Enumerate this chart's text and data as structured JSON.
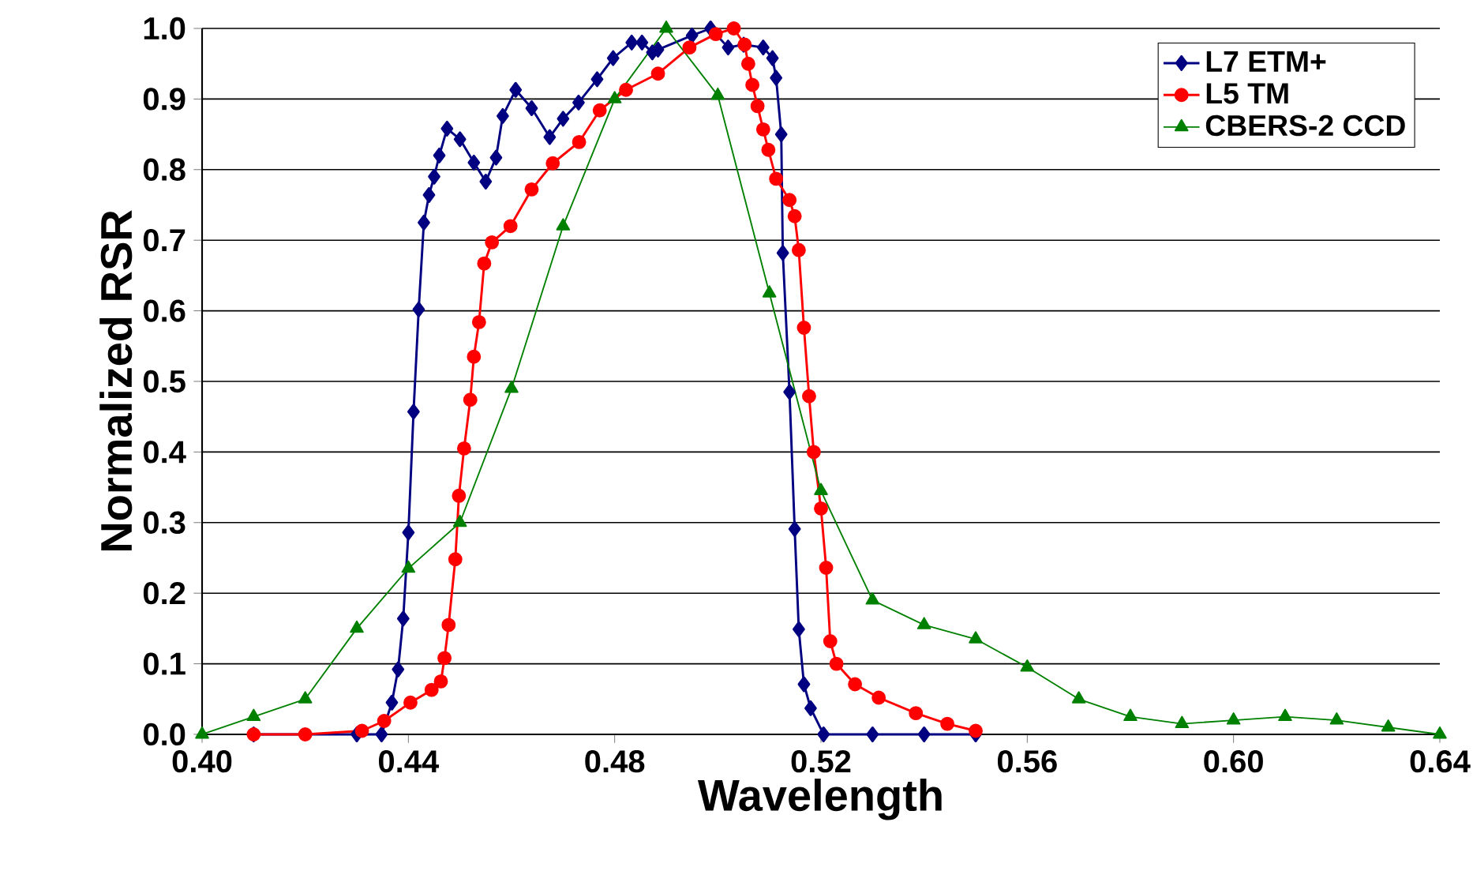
{
  "chart_data": {
    "type": "line",
    "xlabel": "Wavelength",
    "ylabel": "Normalized RSR",
    "xlim": [
      0.4,
      0.64
    ],
    "ylim": [
      0,
      1.0
    ],
    "xticks": [
      {
        "value": 0.4,
        "label": "0.40"
      },
      {
        "value": 0.44,
        "label": "0.44"
      },
      {
        "value": 0.48,
        "label": "0.48"
      },
      {
        "value": 0.52,
        "label": "0.52"
      },
      {
        "value": 0.56,
        "label": "0.56"
      },
      {
        "value": 0.6,
        "label": "0.60"
      },
      {
        "value": 0.64,
        "label": "0.64"
      }
    ],
    "yticks": [
      {
        "value": 0,
        "label": "0.0"
      },
      {
        "value": 0.1,
        "label": "0.1"
      },
      {
        "value": 0.2,
        "label": "0.2"
      },
      {
        "value": 0.3,
        "label": "0.3"
      },
      {
        "value": 0.4,
        "label": "0.4"
      },
      {
        "value": 0.5,
        "label": "0.5"
      },
      {
        "value": 0.6,
        "label": "0.6"
      },
      {
        "value": 0.7,
        "label": "0.7"
      },
      {
        "value": 0.8,
        "label": "0.8"
      },
      {
        "value": 0.9,
        "label": "0.9"
      },
      {
        "value": 1.0,
        "label": "1.0"
      }
    ],
    "grid": "y",
    "legend": "top right",
    "series": [
      {
        "name": "L7 ETM+",
        "color": "#000080",
        "marker": "diamond",
        "x": [
          0.41,
          0.43,
          0.4348,
          0.4368,
          0.438,
          0.439,
          0.44,
          0.441,
          0.442,
          0.443,
          0.444,
          0.445,
          0.446,
          0.4475,
          0.45,
          0.4527,
          0.455,
          0.457,
          0.4583,
          0.4608,
          0.4639,
          0.4674,
          0.47,
          0.473,
          0.4766,
          0.4797,
          0.4833,
          0.4853,
          0.4873,
          0.4884,
          0.495,
          0.4986,
          0.502,
          0.505,
          0.5088,
          0.5106,
          0.5113,
          0.5123,
          0.5126,
          0.5139,
          0.5149,
          0.5157,
          0.5167,
          0.518,
          0.5205,
          0.53,
          0.54,
          0.55
        ],
        "values": [
          0,
          0,
          0,
          0.045,
          0.092,
          0.164,
          0.286,
          0.457,
          0.602,
          0.725,
          0.764,
          0.79,
          0.82,
          0.858,
          0.843,
          0.81,
          0.783,
          0.817,
          0.876,
          0.913,
          0.887,
          0.846,
          0.872,
          0.895,
          0.928,
          0.958,
          0.98,
          0.98,
          0.966,
          0.97,
          0.99,
          1.0,
          0.973,
          0.977,
          0.973,
          0.958,
          0.93,
          0.85,
          0.682,
          0.485,
          0.291,
          0.149,
          0.071,
          0.037,
          0,
          0,
          0,
          0
        ]
      },
      {
        "name": "L5 TM",
        "color": "#ff0000",
        "marker": "circle",
        "x": [
          0.41,
          0.42,
          0.431,
          0.4353,
          0.4404,
          0.4445,
          0.4463,
          0.447,
          0.4478,
          0.4491,
          0.4498,
          0.4508,
          0.452,
          0.4527,
          0.4537,
          0.4547,
          0.4562,
          0.4598,
          0.4639,
          0.468,
          0.4731,
          0.4771,
          0.4822,
          0.4884,
          0.4945,
          0.4996,
          0.5031,
          0.5052,
          0.5059,
          0.5067,
          0.5077,
          0.5088,
          0.5098,
          0.5113,
          0.5139,
          0.5149,
          0.5157,
          0.5167,
          0.5177,
          0.5186,
          0.52,
          0.521,
          0.5218,
          0.523,
          0.5266,
          0.5312,
          0.5384,
          0.5445,
          0.55
        ],
        "values": [
          0,
          0,
          0.005,
          0.019,
          0.045,
          0.063,
          0.075,
          0.108,
          0.155,
          0.248,
          0.338,
          0.405,
          0.474,
          0.535,
          0.584,
          0.667,
          0.697,
          0.72,
          0.772,
          0.809,
          0.839,
          0.884,
          0.913,
          0.936,
          0.973,
          0.992,
          1.0,
          0.977,
          0.95,
          0.92,
          0.89,
          0.857,
          0.828,
          0.787,
          0.757,
          0.734,
          0.686,
          0.576,
          0.479,
          0.4,
          0.32,
          0.236,
          0.132,
          0.1,
          0.071,
          0.052,
          0.03,
          0.015,
          0.005
        ]
      },
      {
        "name": "CBERS-2 CCD",
        "color": "#008000",
        "marker": "triangle",
        "x": [
          0.4,
          0.41,
          0.42,
          0.43,
          0.44,
          0.45,
          0.46,
          0.47,
          0.48,
          0.49,
          0.5,
          0.51,
          0.52,
          0.53,
          0.54,
          0.55,
          0.56,
          0.57,
          0.58,
          0.59,
          0.6,
          0.61,
          0.62,
          0.63,
          0.64
        ],
        "values": [
          0,
          0.025,
          0.05,
          0.15,
          0.235,
          0.3,
          0.49,
          0.72,
          0.9,
          1.0,
          0.905,
          0.625,
          0.345,
          0.19,
          0.155,
          0.135,
          0.095,
          0.05,
          0.025,
          0.015,
          0.02,
          0.025,
          0.02,
          0.01,
          0.0
        ]
      }
    ]
  }
}
